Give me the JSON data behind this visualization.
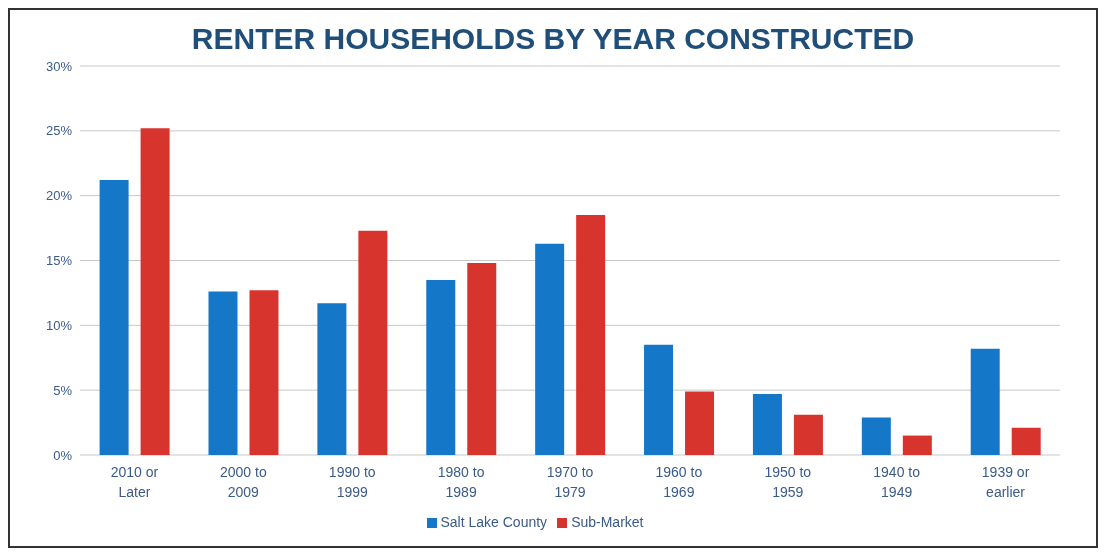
{
  "chart_data": {
    "type": "bar",
    "title": "RENTER HOUSEHOLDS BY YEAR CONSTRUCTED",
    "categories": [
      "2010 or Later",
      "2000 to 2009",
      "1990 to 1999",
      "1980 to 1989",
      "1970 to 1979",
      "1960 to 1969",
      "1950 to 1959",
      "1940 to 1949",
      "1939 or earlier"
    ],
    "series": [
      {
        "name": "Salt Lake County",
        "color": "#1477c8",
        "values": [
          21.2,
          12.6,
          11.7,
          13.5,
          16.3,
          8.5,
          4.7,
          2.9,
          8.2
        ]
      },
      {
        "name": "Sub-Market",
        "color": "#d8342e",
        "values": [
          25.2,
          12.7,
          17.3,
          14.8,
          18.5,
          4.9,
          3.1,
          1.5,
          2.1
        ]
      }
    ],
    "ylim": [
      0,
      30
    ],
    "yticks": [
      {
        "value": 0,
        "label": "0%"
      },
      {
        "value": 5,
        "label": "5%"
      },
      {
        "value": 10,
        "label": "10%"
      },
      {
        "value": 15,
        "label": "15%"
      },
      {
        "value": 20,
        "label": "20%"
      },
      {
        "value": 25,
        "label": "25%"
      },
      {
        "value": 30,
        "label": "30%"
      }
    ],
    "grid": "y",
    "legend": "bottom"
  }
}
